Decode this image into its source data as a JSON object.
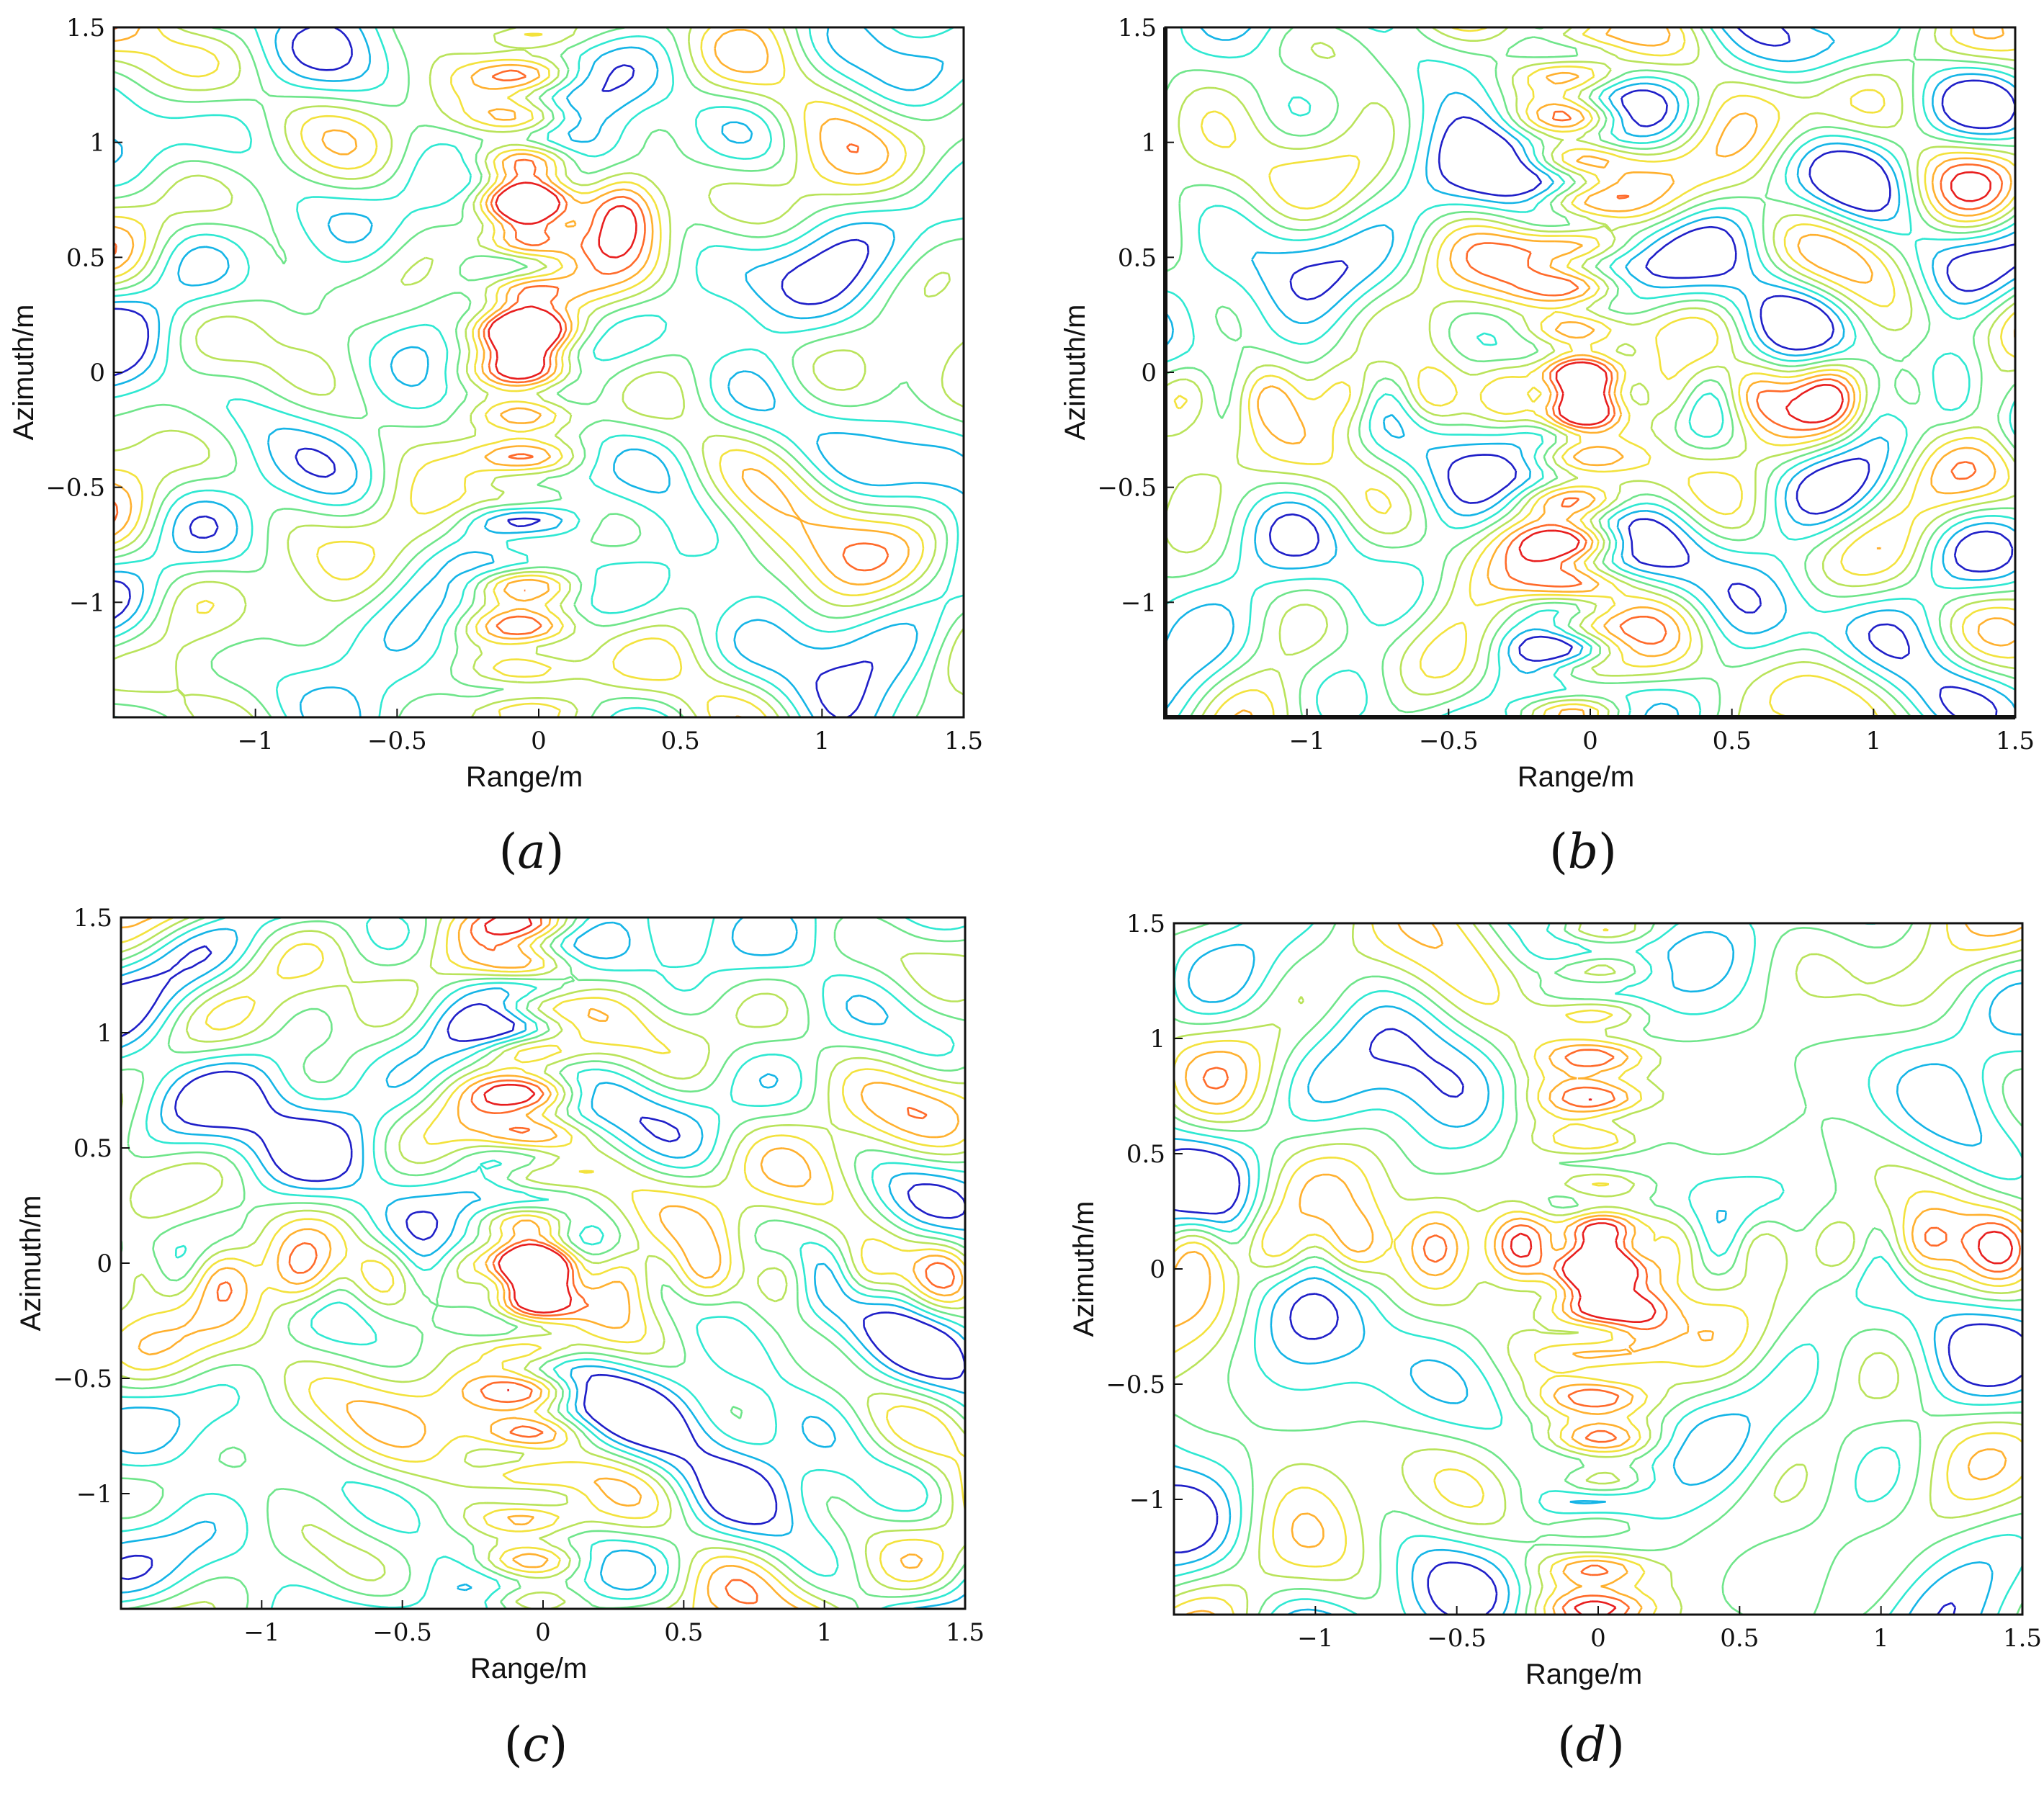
{
  "figure": {
    "colors": {
      "level_colors": [
        "#1f1fc8",
        "#14b4e6",
        "#2ee8d2",
        "#6fe58a",
        "#b9e35a",
        "#f3e23c",
        "#ffb02e",
        "#ff6a2a",
        "#e81e1e"
      ],
      "background": "#ffffff",
      "axis": "#111111"
    }
  },
  "chart_data": [
    {
      "type": "contour",
      "panel": "a",
      "caption_open": "(",
      "caption_letter": "a",
      "caption_close": ")",
      "xlabel": "Range/m",
      "ylabel": "Azimuth/m",
      "xlim": [
        -1.5,
        1.5
      ],
      "ylim": [
        -1.5,
        1.5
      ],
      "xticks": [
        -1,
        -0.5,
        0,
        0.5,
        1,
        1.5
      ],
      "xtick_labels": [
        "−1",
        "−0.5",
        "0",
        "0.5",
        "1",
        "1.5"
      ],
      "yticks": [
        1.5,
        1,
        0.5,
        0,
        -0.5,
        -1
      ],
      "ytick_labels": [
        "1.5",
        "1",
        "0.5",
        "0",
        "−0.5",
        "−1"
      ],
      "levels": 9,
      "colormap": "jet",
      "peaks": [
        {
          "x": -0.05,
          "y": 0.72,
          "strength": 1.0
        },
        {
          "x": 0.3,
          "y": 0.72,
          "strength": 0.9
        },
        {
          "x": -0.05,
          "y": 0.15,
          "strength": 0.95
        }
      ],
      "sidelobes": {
        "vertical_range": -0.05,
        "horizontal_azimuth": null
      }
    },
    {
      "type": "contour",
      "panel": "b",
      "caption_open": "(",
      "caption_letter": "b",
      "caption_close": ")",
      "xlabel": "Range/m",
      "ylabel": "Azimuth/m",
      "xlim": [
        -1.5,
        1.5
      ],
      "ylim": [
        -1.5,
        1.5
      ],
      "xticks": [
        -1,
        -0.5,
        0,
        0.5,
        1,
        1.5
      ],
      "xtick_labels": [
        "−1",
        "−0.5",
        "0",
        "0.5",
        "1",
        "1.5"
      ],
      "yticks": [
        1.5,
        1,
        0.5,
        0,
        -0.5,
        -1
      ],
      "ytick_labels": [
        "1.5",
        "1",
        "0.5",
        "0",
        "−0.5",
        "−1"
      ],
      "levels": 9,
      "colormap": "jet",
      "peaks": [
        {
          "x": -0.05,
          "y": -0.08,
          "strength": 1.0
        }
      ],
      "sidelobes": {
        "vertical_range": -0.05,
        "horizontal_azimuth": -0.1
      }
    },
    {
      "type": "contour",
      "panel": "c",
      "caption_open": "(",
      "caption_letter": "c",
      "caption_close": ")",
      "xlabel": "Range/m",
      "ylabel": "Azimuth/m",
      "xlim": [
        -1.5,
        1.5
      ],
      "ylim": [
        -1.5,
        1.5
      ],
      "xticks": [
        -1,
        -0.5,
        0,
        0.5,
        1,
        1.5
      ],
      "xtick_labels": [
        "−1",
        "−0.5",
        "0",
        "0.5",
        "1",
        "1.5"
      ],
      "yticks": [
        1.5,
        1,
        0.5,
        0,
        -0.5,
        -1
      ],
      "ytick_labels": [
        "1.5",
        "1",
        "0.5",
        "0",
        "−0.5",
        "−1"
      ],
      "levels": 9,
      "colormap": "jet",
      "peaks": [
        {
          "x": -0.05,
          "y": -0.05,
          "strength": 1.0
        }
      ],
      "sidelobes": {
        "vertical_range": -0.05,
        "horizontal_azimuth": -0.05
      }
    },
    {
      "type": "contour",
      "panel": "d",
      "caption_open": "(",
      "caption_letter": "d",
      "caption_close": ")",
      "xlabel": "Range/m",
      "ylabel": "Azimuth/m",
      "xlim": [
        -1.5,
        1.5
      ],
      "ylim": [
        -1.5,
        1.5
      ],
      "xticks": [
        -1,
        -0.5,
        0,
        0.5,
        1,
        1.5
      ],
      "xtick_labels": [
        "−1",
        "−0.5",
        "0",
        "0.5",
        "1",
        "1.5"
      ],
      "yticks": [
        1.5,
        1,
        0.5,
        0,
        -0.5,
        -1
      ],
      "ytick_labels": [
        "1.5",
        "1",
        "0.5",
        "0",
        "−0.5",
        "−1"
      ],
      "levels": 9,
      "colormap": "jet",
      "peaks": [
        {
          "x": -0.02,
          "y": -0.05,
          "strength": 1.0
        },
        {
          "x": -0.25,
          "y": 0.1,
          "strength": 0.8
        },
        {
          "x": 0.15,
          "y": -0.2,
          "strength": 0.75
        }
      ],
      "sidelobes": {
        "vertical_range": 0.0,
        "horizontal_azimuth": 0.1
      }
    }
  ]
}
